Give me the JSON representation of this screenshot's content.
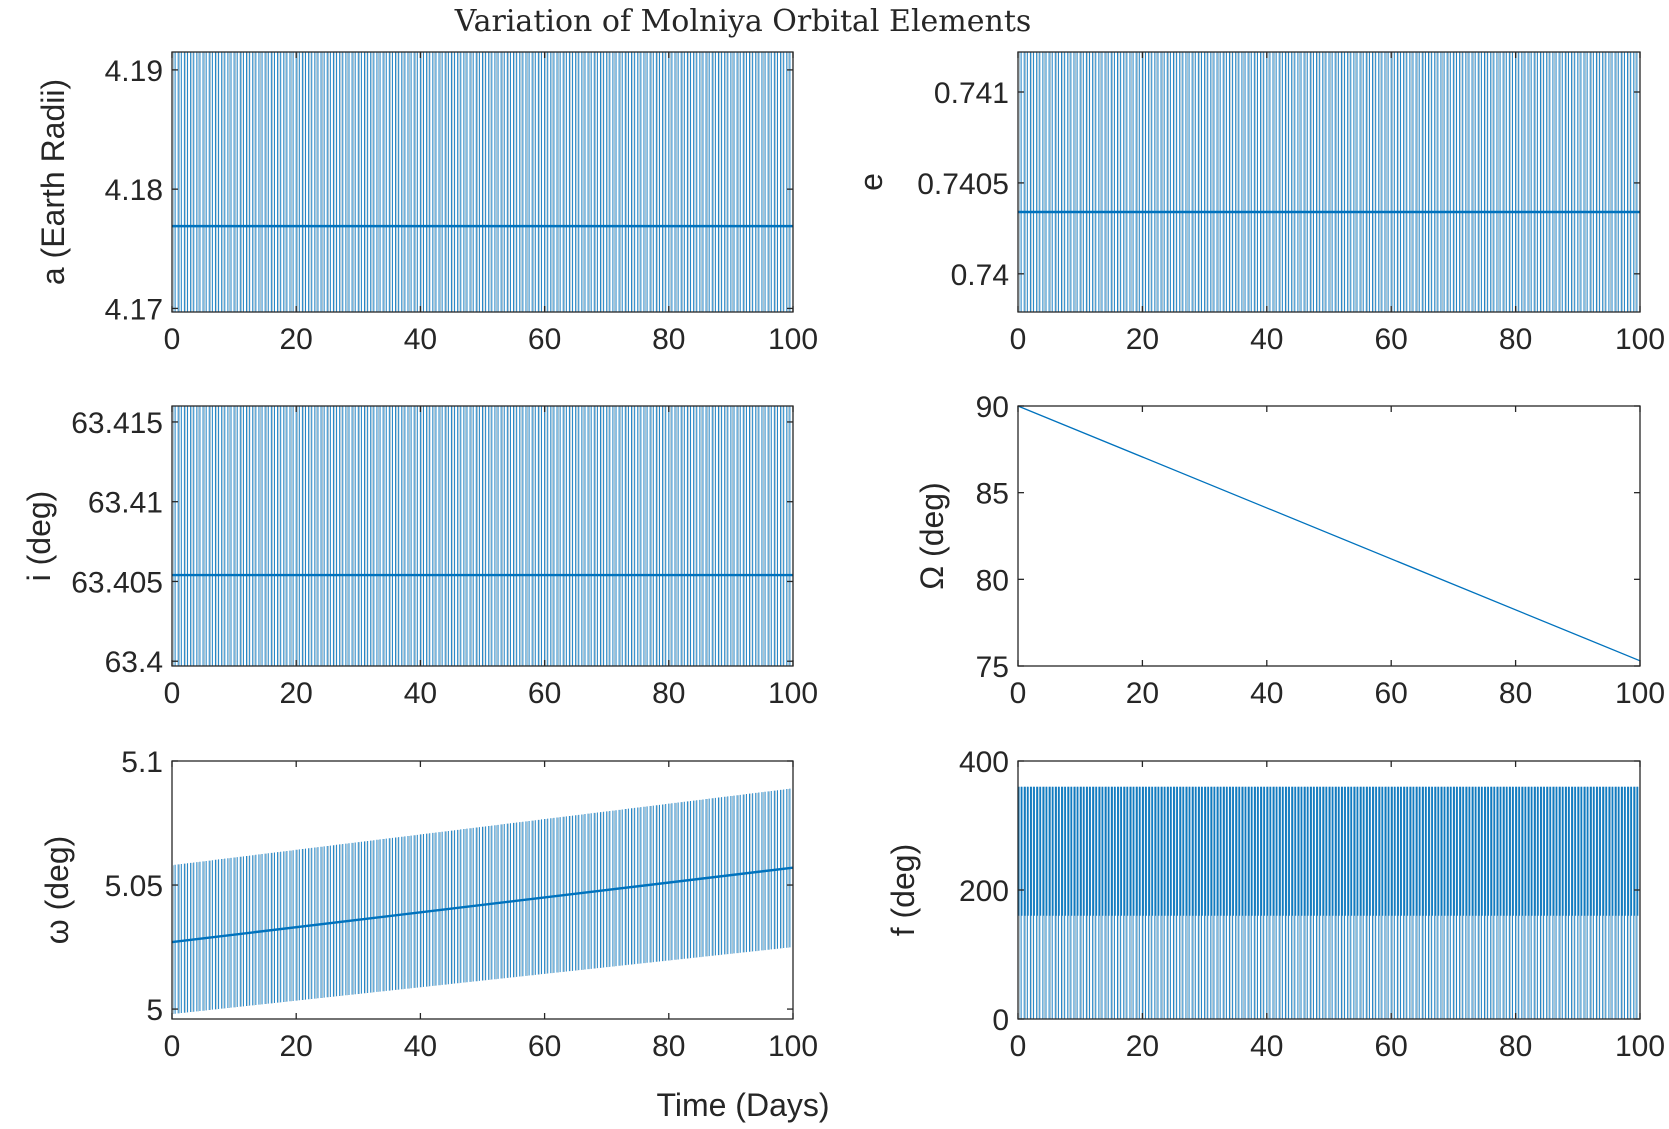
{
  "figure": {
    "title": "Variation of Molniya Orbital Elements",
    "xlabel": "Time (Days)"
  },
  "style": {
    "series_color": "#0072BD",
    "dark_band_color": "#0b4f73",
    "axis_color": "#262626",
    "background": "#ffffff"
  },
  "chart_data": [
    {
      "id": "a",
      "type": "line",
      "ylabel": "a (Earth Radii)",
      "xlim": [
        0,
        100
      ],
      "ylim": [
        4.1697,
        4.1915
      ],
      "xticks": [
        0,
        20,
        40,
        60,
        80,
        100
      ],
      "yticks": [
        4.17,
        4.18,
        4.19
      ],
      "ytick_labels": [
        "4.17",
        "4.18",
        "4.19"
      ],
      "series": [
        {
          "oscillation_min": 4.1697,
          "oscillation_max": 4.1915,
          "mean_start": 4.1769,
          "mean_end": 4.1769,
          "period_days": 0.5
        }
      ]
    },
    {
      "id": "e",
      "type": "line",
      "ylabel": "e",
      "xlim": [
        0,
        100
      ],
      "ylim": [
        0.73979,
        0.74122
      ],
      "xticks": [
        0,
        20,
        40,
        60,
        80,
        100
      ],
      "yticks": [
        0.74,
        0.7405,
        0.741
      ],
      "ytick_labels": [
        "0.74",
        "0.7405",
        "0.741"
      ],
      "series": [
        {
          "oscillation_min": 0.73979,
          "oscillation_max": 0.74122,
          "mean_start": 0.74034,
          "mean_end": 0.74034,
          "period_days": 0.5
        }
      ]
    },
    {
      "id": "i",
      "type": "line",
      "ylabel": "i (deg)",
      "xlim": [
        0,
        100
      ],
      "ylim": [
        63.3997,
        63.416
      ],
      "xticks": [
        0,
        20,
        40,
        60,
        80,
        100
      ],
      "yticks": [
        63.4,
        63.405,
        63.41,
        63.415
      ],
      "ytick_labels": [
        "63.4",
        "63.405",
        "63.41",
        "63.415"
      ],
      "series": [
        {
          "oscillation_min": 63.3997,
          "oscillation_max": 63.416,
          "mean_start": 63.4054,
          "mean_end": 63.4054,
          "period_days": 0.5
        }
      ]
    },
    {
      "id": "raan",
      "type": "line",
      "ylabel": "Ω (deg)",
      "xlim": [
        0,
        100
      ],
      "ylim": [
        75,
        90
      ],
      "xticks": [
        0,
        20,
        40,
        60,
        80,
        100
      ],
      "yticks": [
        75,
        80,
        85,
        90
      ],
      "ytick_labels": [
        "75",
        "80",
        "85",
        "90"
      ],
      "series": [
        {
          "x": [
            0,
            100
          ],
          "y": [
            90,
            75.3
          ]
        }
      ]
    },
    {
      "id": "argp",
      "type": "line",
      "ylabel": "ω (deg)",
      "xlim": [
        0,
        100
      ],
      "ylim": [
        4.996,
        5.1
      ],
      "xticks": [
        0,
        20,
        40,
        60,
        80,
        100
      ],
      "yticks": [
        5,
        5.05,
        5.1
      ],
      "ytick_labels": [
        "5",
        "5.05",
        "5.1"
      ],
      "series": [
        {
          "oscillation_min_start": 4.998,
          "oscillation_min_end": 5.025,
          "oscillation_max_start": 5.058,
          "oscillation_max_end": 5.089,
          "mean_start": 5.027,
          "mean_end": 5.057,
          "period_days": 0.5
        }
      ]
    },
    {
      "id": "f",
      "type": "line",
      "ylabel": "f (deg)",
      "xlim": [
        0,
        100
      ],
      "ylim": [
        0,
        400
      ],
      "xticks": [
        0,
        20,
        40,
        60,
        80,
        100
      ],
      "yticks": [
        0,
        200,
        400
      ],
      "ytick_labels": [
        "0",
        "200",
        "400"
      ],
      "series": [
        {
          "oscillation_min": 0,
          "oscillation_max": 360,
          "dense_band_min": 160,
          "dense_band_max": 360,
          "period_days": 0.5
        }
      ]
    }
  ]
}
